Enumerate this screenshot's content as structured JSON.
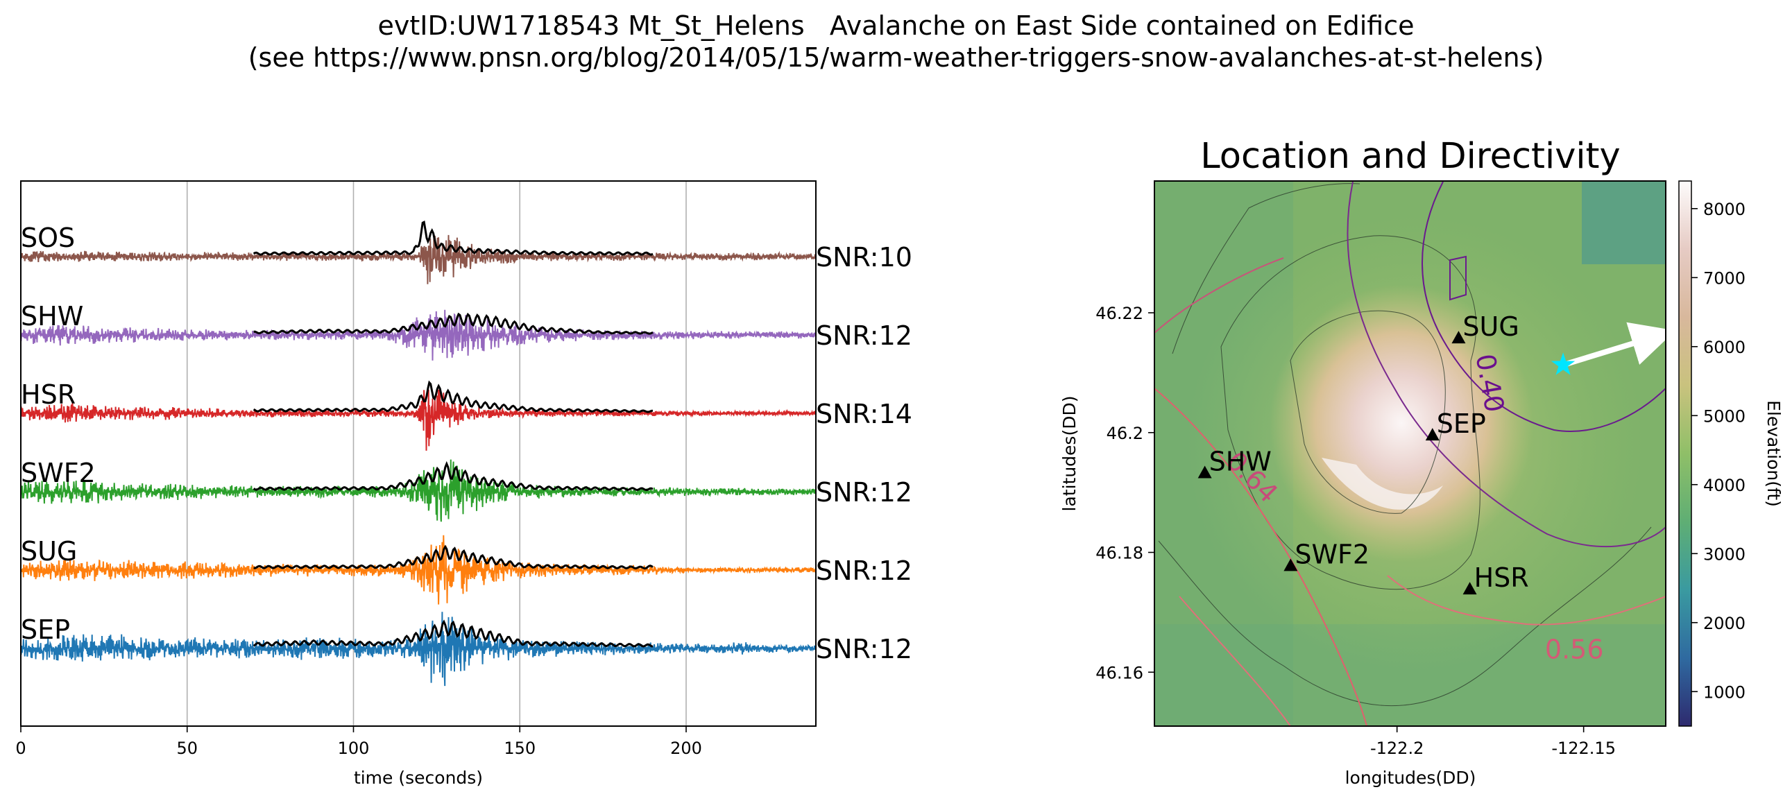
{
  "figure": {
    "title_line1": "evtID:UW1718543 Mt_St_Helens   Avalanche on East Side contained on Edifice",
    "title_line2": "(see https://www.pnsn.org/blog/2014/05/15/warm-weather-triggers-snow-avalanches-at-st-helens)"
  },
  "chart_data": [
    {
      "type": "line",
      "title": "",
      "xlabel": "time (seconds)",
      "ylabel": "",
      "xlim": [
        0,
        239
      ],
      "x_ticks": [
        0,
        50,
        100,
        150,
        200
      ],
      "grid": "vertical",
      "envelope_color": "#000000",
      "envelope_span": [
        70,
        190
      ],
      "series": [
        {
          "name": "SOS",
          "snr": "SNR:10",
          "color": "#8c564b",
          "noise": 0.22,
          "noise_shape": [
            [
              0,
              0.8
            ],
            [
              60,
              0.6
            ],
            [
              200,
              0.5
            ],
            [
              239,
              0.45
            ]
          ],
          "bursts": [
            {
              "t": 122,
              "amp": 1.0,
              "rise": 1,
              "decay": 5
            },
            {
              "t": 130,
              "amp": 0.35,
              "rise": 2,
              "decay": 10
            }
          ],
          "env": [
            [
              70,
              0.06
            ],
            [
              118,
              0.08
            ],
            [
              121,
              0.55
            ],
            [
              123,
              0.45
            ],
            [
              126,
              0.2
            ],
            [
              135,
              0.12
            ],
            [
              160,
              0.07
            ],
            [
              190,
              0.06
            ]
          ]
        },
        {
          "name": "SHW",
          "snr": "SNR:12",
          "color": "#9467bd",
          "noise": 0.28,
          "noise_shape": [
            [
              0,
              0.8
            ],
            [
              12,
              1.3
            ],
            [
              25,
              0.9
            ],
            [
              60,
              0.55
            ],
            [
              200,
              0.4
            ],
            [
              239,
              0.35
            ]
          ],
          "bursts": [
            {
              "t": 128,
              "amp": 0.75,
              "rise": 8,
              "decay": 15
            }
          ],
          "env": [
            [
              70,
              0.05
            ],
            [
              90,
              0.08
            ],
            [
              110,
              0.07
            ],
            [
              120,
              0.18
            ],
            [
              132,
              0.32
            ],
            [
              142,
              0.28
            ],
            [
              155,
              0.12
            ],
            [
              175,
              0.05
            ],
            [
              190,
              0.04
            ]
          ]
        },
        {
          "name": "HSR",
          "snr": "SNR:14",
          "color": "#d62728",
          "noise": 0.25,
          "noise_shape": [
            [
              0,
              0.8
            ],
            [
              15,
              1.3
            ],
            [
              28,
              0.9
            ],
            [
              70,
              0.5
            ],
            [
              200,
              0.3
            ],
            [
              239,
              0.25
            ]
          ],
          "bursts": [
            {
              "t": 122,
              "amp": 1.0,
              "rise": 1.5,
              "decay": 7
            }
          ],
          "env": [
            [
              70,
              0.06
            ],
            [
              110,
              0.07
            ],
            [
              119,
              0.18
            ],
            [
              123,
              0.48
            ],
            [
              128,
              0.35
            ],
            [
              137,
              0.18
            ],
            [
              155,
              0.07
            ],
            [
              190,
              0.04
            ]
          ]
        },
        {
          "name": "SWF2",
          "snr": "SNR:12",
          "color": "#2ca02c",
          "noise": 0.3,
          "noise_shape": [
            [
              0,
              0.9
            ],
            [
              15,
              1.4
            ],
            [
              30,
              0.9
            ],
            [
              70,
              0.6
            ],
            [
              200,
              0.4
            ],
            [
              239,
              0.3
            ]
          ],
          "bursts": [
            {
              "t": 128,
              "amp": 1.0,
              "rise": 6,
              "decay": 10
            }
          ],
          "env": [
            [
              70,
              0.06
            ],
            [
              110,
              0.07
            ],
            [
              120,
              0.22
            ],
            [
              128,
              0.42
            ],
            [
              138,
              0.22
            ],
            [
              155,
              0.08
            ],
            [
              190,
              0.05
            ]
          ]
        },
        {
          "name": "SUG",
          "snr": "SNR:12",
          "color": "#ff7f0e",
          "noise": 0.28,
          "noise_shape": [
            [
              0,
              0.8
            ],
            [
              15,
              1.3
            ],
            [
              35,
              1.0
            ],
            [
              70,
              0.7
            ],
            [
              190,
              0.5
            ],
            [
              195,
              0.3
            ],
            [
              239,
              0.3
            ]
          ],
          "bursts": [
            {
              "t": 127,
              "amp": 0.95,
              "rise": 5,
              "decay": 10
            }
          ],
          "env": [
            [
              70,
              0.06
            ],
            [
              110,
              0.07
            ],
            [
              120,
              0.2
            ],
            [
              128,
              0.36
            ],
            [
              136,
              0.25
            ],
            [
              152,
              0.08
            ],
            [
              188,
              0.05
            ],
            [
              190,
              0.08
            ]
          ]
        },
        {
          "name": "SEP",
          "snr": "SNR:12",
          "color": "#1f77b4",
          "noise": 0.35,
          "noise_shape": [
            [
              0,
              0.9
            ],
            [
              18,
              1.3
            ],
            [
              40,
              1.0
            ],
            [
              70,
              0.8
            ],
            [
              120,
              0.7
            ],
            [
              190,
              0.5
            ],
            [
              239,
              0.3
            ]
          ],
          "bursts": [
            {
              "t": 126,
              "amp": 1.0,
              "rise": 4,
              "decay": 10
            },
            {
              "t": 88,
              "amp": 0.2,
              "rise": 3,
              "decay": 5
            },
            {
              "t": 216,
              "amp": 0.12,
              "rise": 1,
              "decay": 2
            }
          ],
          "env": [
            [
              70,
              0.08
            ],
            [
              88,
              0.12
            ],
            [
              110,
              0.09
            ],
            [
              120,
              0.25
            ],
            [
              128,
              0.42
            ],
            [
              138,
              0.3
            ],
            [
              152,
              0.1
            ],
            [
              190,
              0.06
            ]
          ]
        }
      ]
    },
    {
      "type": "map",
      "title": "Location and Directivity",
      "xlabel": "longitudes(DD)",
      "ylabel": "latitudes(DD)",
      "xlim": [
        -122.265,
        -122.128
      ],
      "ylim": [
        46.151,
        46.242
      ],
      "x_ticks": [
        -122.2,
        -122.15
      ],
      "x_tick_labels": [
        "-122.2",
        "-122.15"
      ],
      "y_ticks": [
        46.16,
        46.18,
        46.2,
        46.22
      ],
      "y_tick_labels": [
        "46.16",
        "46.18",
        "46.2",
        "46.22"
      ],
      "stations": [
        {
          "name": "SUG",
          "lon": -122.1835,
          "lat": 46.2157
        },
        {
          "name": "SEP",
          "lon": -122.1905,
          "lat": 46.1995
        },
        {
          "name": "SHW",
          "lon": -122.2515,
          "lat": 46.1932
        },
        {
          "name": "SWF2",
          "lon": -122.2285,
          "lat": 46.1777
        },
        {
          "name": "HSR",
          "lon": -122.1805,
          "lat": 46.1738
        }
      ],
      "source": {
        "lon": -122.1555,
        "lat": 46.2113,
        "color": "#00e5ff"
      },
      "directivity": {
        "to_lon": -122.1285,
        "to_lat": 46.2163,
        "color": "#ffffff"
      },
      "contour_labels": [
        {
          "text": "0.40",
          "lon": -122.1775,
          "lat": 46.208,
          "color": "#6a0f8e",
          "rotate": 80
        },
        {
          "text": "0.64",
          "lon": -122.2405,
          "lat": 46.1915,
          "color": "#c74b7a",
          "rotate": 45
        },
        {
          "text": "0.56",
          "lon": -122.1525,
          "lat": 46.1623,
          "color": "#d45a77",
          "rotate": 0
        }
      ],
      "colorbar": {
        "label": "Elevation(ft)",
        "range": [
          500,
          8400
        ],
        "ticks": [
          1000,
          2000,
          3000,
          4000,
          5000,
          6000,
          7000,
          8000
        ],
        "tick_labels": [
          "1000",
          "2000",
          "3000",
          "4000",
          "5000",
          "6000",
          "7000",
          "8000"
        ],
        "colors": [
          "#2e2a6e",
          "#2f6aa0",
          "#3a9aa0",
          "#5fae74",
          "#8fbf68",
          "#c9c27e",
          "#d8b89c",
          "#e6cbc4",
          "#fdfbfb"
        ]
      }
    }
  ]
}
